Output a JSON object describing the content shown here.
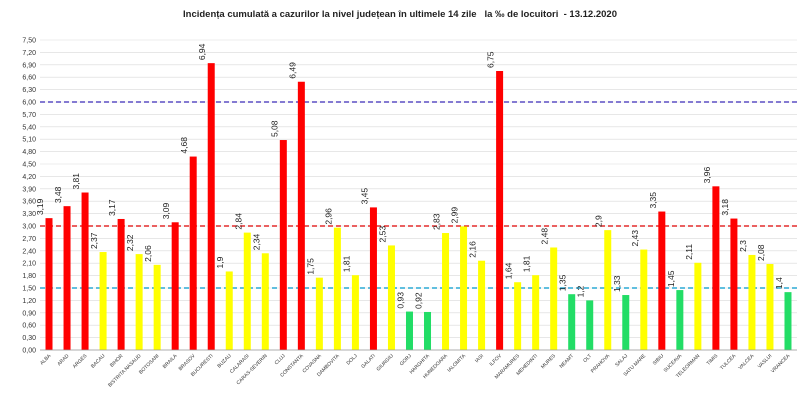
{
  "chart_data": {
    "type": "bar",
    "title": "Incidența cumulată a cazurilor la nivel județean în ultimele 14 zile   la ‰ de locuitori  - 13.12.2020",
    "xlabel": "",
    "ylabel": "",
    "ylim": [
      0,
      7.5
    ],
    "ytick_step": 0.3,
    "grid": true,
    "legend": "none",
    "colors": {
      "red": "#ff0000",
      "yellow": "#ffff00",
      "green": "#22dd66"
    },
    "categories": [
      "ALBA",
      "ARAD",
      "ARGES",
      "BACAU",
      "BIHOR",
      "BISTRITA NASAUD",
      "BOTOSANI",
      "BRAILA",
      "BRASOV",
      "BUCURESTI",
      "BUZAU",
      "CALARASI",
      "CARAS-SEVERIN",
      "CLUJ",
      "CONSTANTA",
      "COVASNA",
      "DAMBOVITA",
      "DOLJ",
      "GALATI",
      "GIURGIU",
      "GORJ",
      "HARGHITA",
      "HUNEDOARA",
      "IALOMITA",
      "IASI",
      "ILFOV",
      "MARAMURES",
      "MEHEDINTI",
      "MURES",
      "NEAMT",
      "OLT",
      "PRAHOVA",
      "SALAJ",
      "SATU MARE",
      "SIBIU",
      "SUCEAVA",
      "TELEORMAN",
      "TIMIS",
      "TULCEA",
      "VALCEA",
      "VASLUI",
      "VRANCEA"
    ],
    "values": [
      3.19,
      3.48,
      3.81,
      2.37,
      3.17,
      2.32,
      2.06,
      3.09,
      4.68,
      6.94,
      1.9,
      2.84,
      2.34,
      5.08,
      6.49,
      1.75,
      2.96,
      1.81,
      3.45,
      2.53,
      0.93,
      0.92,
      2.83,
      2.99,
      2.16,
      6.75,
      1.64,
      1.81,
      2.48,
      1.35,
      1.2,
      2.9,
      1.33,
      2.43,
      3.35,
      1.45,
      2.11,
      3.96,
      3.18,
      2.3,
      2.08,
      1.4
    ],
    "value_labels": [
      "3,19",
      "3,48",
      "3,81",
      "2,37",
      "3,17",
      "2,32",
      "2,06",
      "3,09",
      "4,68",
      "6,94",
      "1,9",
      "2,84",
      "2,34",
      "5,08",
      "6,49",
      "1,75",
      "2,96",
      "1,81",
      "3,45",
      "2,53",
      "0,93",
      "0,92",
      "2,83",
      "2,99",
      "2,16",
      "6,75",
      "1,64",
      "1,81",
      "2,48",
      "1,35",
      "1,2",
      "2,9",
      "1,33",
      "2,43",
      "3,35",
      "1,45",
      "2,11",
      "3,96",
      "3,18",
      "2,3",
      "2,08",
      "1,4"
    ],
    "bar_colors": [
      "red",
      "red",
      "red",
      "yellow",
      "red",
      "yellow",
      "yellow",
      "red",
      "red",
      "red",
      "yellow",
      "yellow",
      "yellow",
      "red",
      "red",
      "yellow",
      "yellow",
      "yellow",
      "red",
      "yellow",
      "green",
      "green",
      "yellow",
      "yellow",
      "yellow",
      "red",
      "yellow",
      "yellow",
      "yellow",
      "green",
      "green",
      "yellow",
      "green",
      "yellow",
      "red",
      "green",
      "yellow",
      "red",
      "red",
      "yellow",
      "yellow",
      "green"
    ],
    "reference_lines": [
      {
        "value": 6.0,
        "color": "#3a2bb8"
      },
      {
        "value": 3.0,
        "color": "#dd0000"
      },
      {
        "value": 1.5,
        "color": "#0099cc"
      }
    ]
  }
}
